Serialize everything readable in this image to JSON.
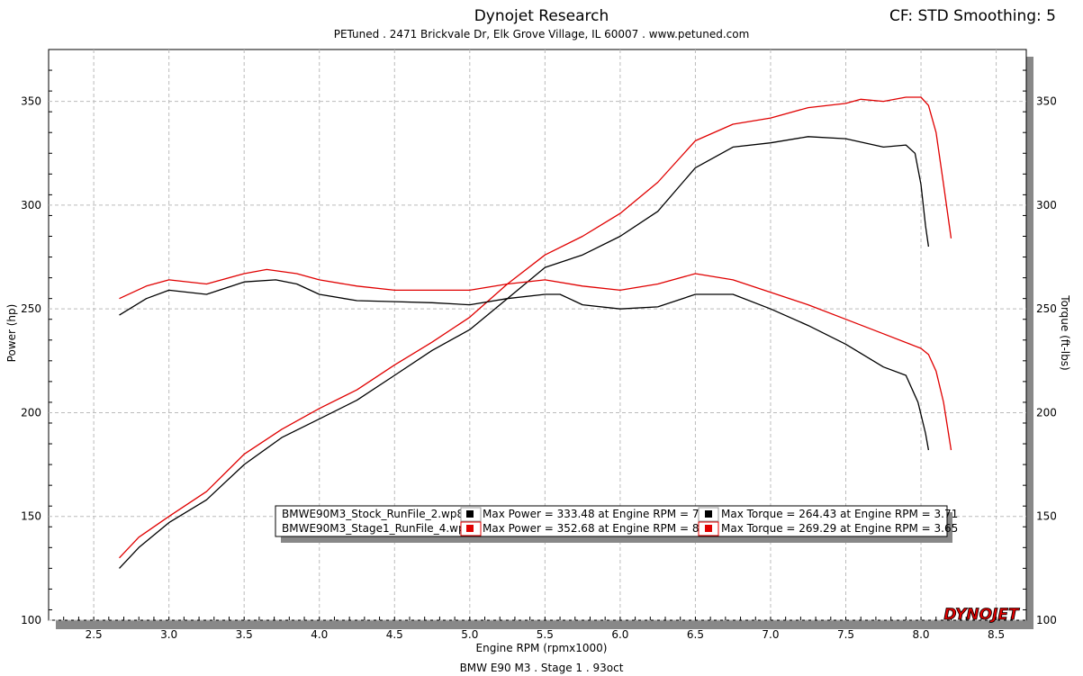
{
  "header": {
    "title": "Dynojet Research",
    "subtitle": "PETuned . 2471 Brickvale Dr, Elk Grove Village, IL 60007 . www.petuned.com",
    "correction": "CF: STD Smoothing: 5"
  },
  "footer": {
    "run_title": "BMW E90 M3 . Stage 1 . 93oct"
  },
  "logo_text": "DYNOJET",
  "colors": {
    "stock": "#000000",
    "stage1": "#e00000",
    "grid": "#bbbbbb",
    "shadow": "#888888"
  },
  "legend": {
    "rows": [
      {
        "run": "BMWE90M3_Stock_RunFile_2.wp8",
        "power": "Max Power = 333.48 at Engine RPM = 7.32",
        "torque": "Max Torque = 264.43 at Engine RPM = 3.71",
        "color": "#000000"
      },
      {
        "run": "BMWE90M3_Stage1_RunFile_4.wp8",
        "power": "Max Power = 352.68 at Engine RPM = 8.00",
        "torque": "Max Torque = 269.29 at Engine RPM = 3.65",
        "color": "#e00000"
      }
    ]
  },
  "chart_data": {
    "type": "line",
    "xlabel": "Engine RPM (rpmx1000)",
    "ylabel": "Power (hp)",
    "y2label": "Torque (ft-lbs)",
    "xlim": [
      2.2,
      8.7
    ],
    "ylim": [
      100,
      375
    ],
    "y2lim": [
      100,
      375
    ],
    "x_ticks": [
      "2.5",
      "3.0",
      "3.5",
      "4.0",
      "4.5",
      "5.0",
      "5.5",
      "6.0",
      "6.5",
      "7.0",
      "7.5",
      "8.0",
      "8.5"
    ],
    "y_ticks": [
      "100",
      "150",
      "200",
      "250",
      "300",
      "350"
    ],
    "y2_ticks": [
      "100",
      "150",
      "200",
      "250",
      "300",
      "350"
    ],
    "grid": true,
    "series": [
      {
        "name": "BMWE90M3_Stock_RunFile_2.wp8",
        "measure": "power",
        "color": "#000000",
        "points": [
          [
            2.67,
            125
          ],
          [
            2.8,
            135
          ],
          [
            3.0,
            147
          ],
          [
            3.25,
            158
          ],
          [
            3.5,
            175
          ],
          [
            3.75,
            188
          ],
          [
            4.0,
            197
          ],
          [
            4.25,
            206
          ],
          [
            4.5,
            218
          ],
          [
            4.75,
            230
          ],
          [
            5.0,
            240
          ],
          [
            5.25,
            255
          ],
          [
            5.5,
            270
          ],
          [
            5.75,
            276
          ],
          [
            6.0,
            285
          ],
          [
            6.25,
            297
          ],
          [
            6.5,
            318
          ],
          [
            6.75,
            328
          ],
          [
            7.0,
            330
          ],
          [
            7.25,
            333
          ],
          [
            7.5,
            332
          ],
          [
            7.75,
            328
          ],
          [
            7.9,
            329
          ],
          [
            7.96,
            325
          ],
          [
            8.0,
            310
          ],
          [
            8.03,
            290
          ],
          [
            8.05,
            280
          ]
        ]
      },
      {
        "name": "BMWE90M3_Stage1_RunFile_4.wp8",
        "measure": "power",
        "color": "#e00000",
        "points": [
          [
            2.67,
            130
          ],
          [
            2.8,
            140
          ],
          [
            3.0,
            150
          ],
          [
            3.25,
            162
          ],
          [
            3.5,
            180
          ],
          [
            3.75,
            192
          ],
          [
            4.0,
            202
          ],
          [
            4.25,
            211
          ],
          [
            4.5,
            223
          ],
          [
            4.75,
            234
          ],
          [
            5.0,
            246
          ],
          [
            5.25,
            262
          ],
          [
            5.5,
            276
          ],
          [
            5.75,
            285
          ],
          [
            6.0,
            296
          ],
          [
            6.25,
            311
          ],
          [
            6.5,
            331
          ],
          [
            6.75,
            339
          ],
          [
            7.0,
            342
          ],
          [
            7.25,
            347
          ],
          [
            7.5,
            349
          ],
          [
            7.6,
            351
          ],
          [
            7.75,
            350
          ],
          [
            7.9,
            352
          ],
          [
            8.0,
            352
          ],
          [
            8.05,
            348
          ],
          [
            8.1,
            335
          ],
          [
            8.15,
            310
          ],
          [
            8.2,
            284
          ]
        ]
      },
      {
        "name": "BMWE90M3_Stock_RunFile_2.wp8",
        "measure": "torque",
        "color": "#000000",
        "points": [
          [
            2.67,
            247
          ],
          [
            2.85,
            255
          ],
          [
            3.0,
            259
          ],
          [
            3.25,
            257
          ],
          [
            3.5,
            263
          ],
          [
            3.71,
            264
          ],
          [
            3.85,
            262
          ],
          [
            4.0,
            257
          ],
          [
            4.25,
            254
          ],
          [
            4.5,
            253.5
          ],
          [
            4.75,
            253
          ],
          [
            5.0,
            252
          ],
          [
            5.25,
            255
          ],
          [
            5.5,
            257
          ],
          [
            5.6,
            257
          ],
          [
            5.75,
            252
          ],
          [
            6.0,
            250
          ],
          [
            6.25,
            251
          ],
          [
            6.5,
            257
          ],
          [
            6.75,
            257
          ],
          [
            7.0,
            250
          ],
          [
            7.25,
            242
          ],
          [
            7.5,
            233
          ],
          [
            7.75,
            222
          ],
          [
            7.9,
            218
          ],
          [
            7.98,
            205
          ],
          [
            8.03,
            190
          ],
          [
            8.05,
            182
          ]
        ]
      },
      {
        "name": "BMWE90M3_Stage1_RunFile_4.wp8",
        "measure": "torque",
        "color": "#e00000",
        "points": [
          [
            2.67,
            255
          ],
          [
            2.85,
            261
          ],
          [
            3.0,
            264
          ],
          [
            3.25,
            262
          ],
          [
            3.5,
            267
          ],
          [
            3.65,
            269
          ],
          [
            3.85,
            267
          ],
          [
            4.0,
            264
          ],
          [
            4.25,
            261
          ],
          [
            4.5,
            259
          ],
          [
            4.75,
            259
          ],
          [
            5.0,
            259
          ],
          [
            5.25,
            262
          ],
          [
            5.5,
            264
          ],
          [
            5.75,
            261
          ],
          [
            6.0,
            259
          ],
          [
            6.25,
            262
          ],
          [
            6.5,
            267
          ],
          [
            6.75,
            264
          ],
          [
            7.0,
            258
          ],
          [
            7.25,
            252
          ],
          [
            7.5,
            245
          ],
          [
            7.75,
            238
          ],
          [
            8.0,
            231
          ],
          [
            8.05,
            228
          ],
          [
            8.1,
            220
          ],
          [
            8.15,
            205
          ],
          [
            8.2,
            182
          ]
        ]
      }
    ]
  }
}
